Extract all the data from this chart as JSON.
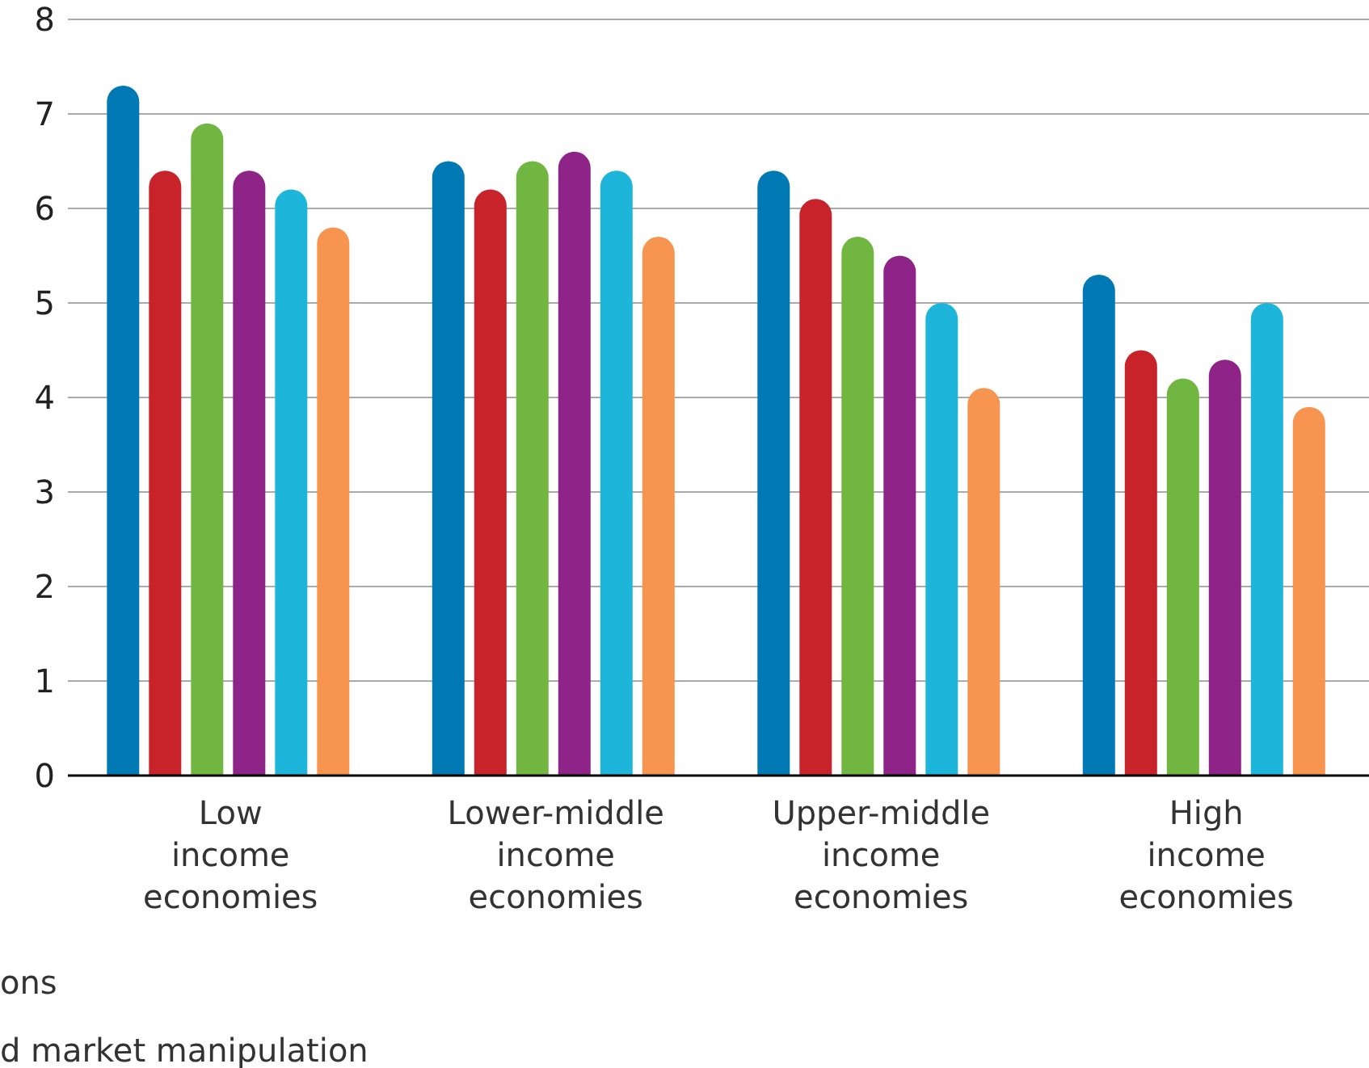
{
  "chart_data": {
    "type": "bar",
    "categories": [
      "Low\nincome\neconomies",
      "Lower-middle\nincome\neconomies",
      "Upper-middle\nincome\neconomies",
      "High\nincome\neconomies"
    ],
    "series": [
      {
        "color": "#0079b4",
        "values": [
          7.3,
          6.5,
          6.4,
          5.3
        ]
      },
      {
        "color": "#c8232b",
        "values": [
          6.4,
          6.2,
          6.1,
          4.5
        ]
      },
      {
        "color": "#72b642",
        "values": [
          6.9,
          6.5,
          5.7,
          4.2
        ]
      },
      {
        "color": "#8e2487",
        "values": [
          6.4,
          6.6,
          5.5,
          4.4
        ]
      },
      {
        "color": "#1db6da",
        "values": [
          6.2,
          6.4,
          5.0,
          5.0
        ]
      },
      {
        "color": "#f79550",
        "values": [
          5.8,
          5.7,
          4.1,
          3.9
        ]
      }
    ],
    "ylim": [
      0,
      8
    ],
    "yticks": [
      0,
      1,
      2,
      3,
      4,
      5,
      6,
      7,
      8
    ],
    "grid": "y",
    "legend": false,
    "annotations": [
      "ons",
      "d market manipulation"
    ]
  }
}
